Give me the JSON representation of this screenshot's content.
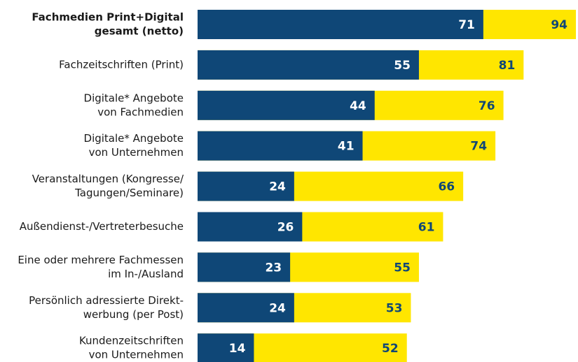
{
  "chart_data": {
    "type": "bar",
    "orientation": "horizontal",
    "overlap": true,
    "categories": [
      [
        "Fachmedien Print+Digital",
        "gesamt (netto)"
      ],
      [
        "Fachzeitschriften (Print)"
      ],
      [
        "Digitale* Angebote",
        "von Fachmedien"
      ],
      [
        "Digitale* Angebote",
        "von Unternehmen"
      ],
      [
        "Veranstaltungen (Kongresse/",
        "Tagungen/Seminare)"
      ],
      [
        "Außendienst-/Vertreterbesuche"
      ],
      [
        "Eine oder mehrere Fachmessen",
        "im In-/Ausland"
      ],
      [
        "Persönlich adressierte Direkt-",
        "werbung (per Post)"
      ],
      [
        "Kundenzeitschriften",
        "von Unternehmen"
      ]
    ],
    "series": [
      {
        "color": "#ffe600",
        "label_color": "#0f4777",
        "values": [
          94,
          81,
          76,
          74,
          66,
          61,
          55,
          53,
          52
        ]
      },
      {
        "color": "#0f4777",
        "label_color": "#ffffff",
        "values": [
          71,
          55,
          44,
          41,
          24,
          26,
          23,
          24,
          14
        ]
      }
    ]
  }
}
